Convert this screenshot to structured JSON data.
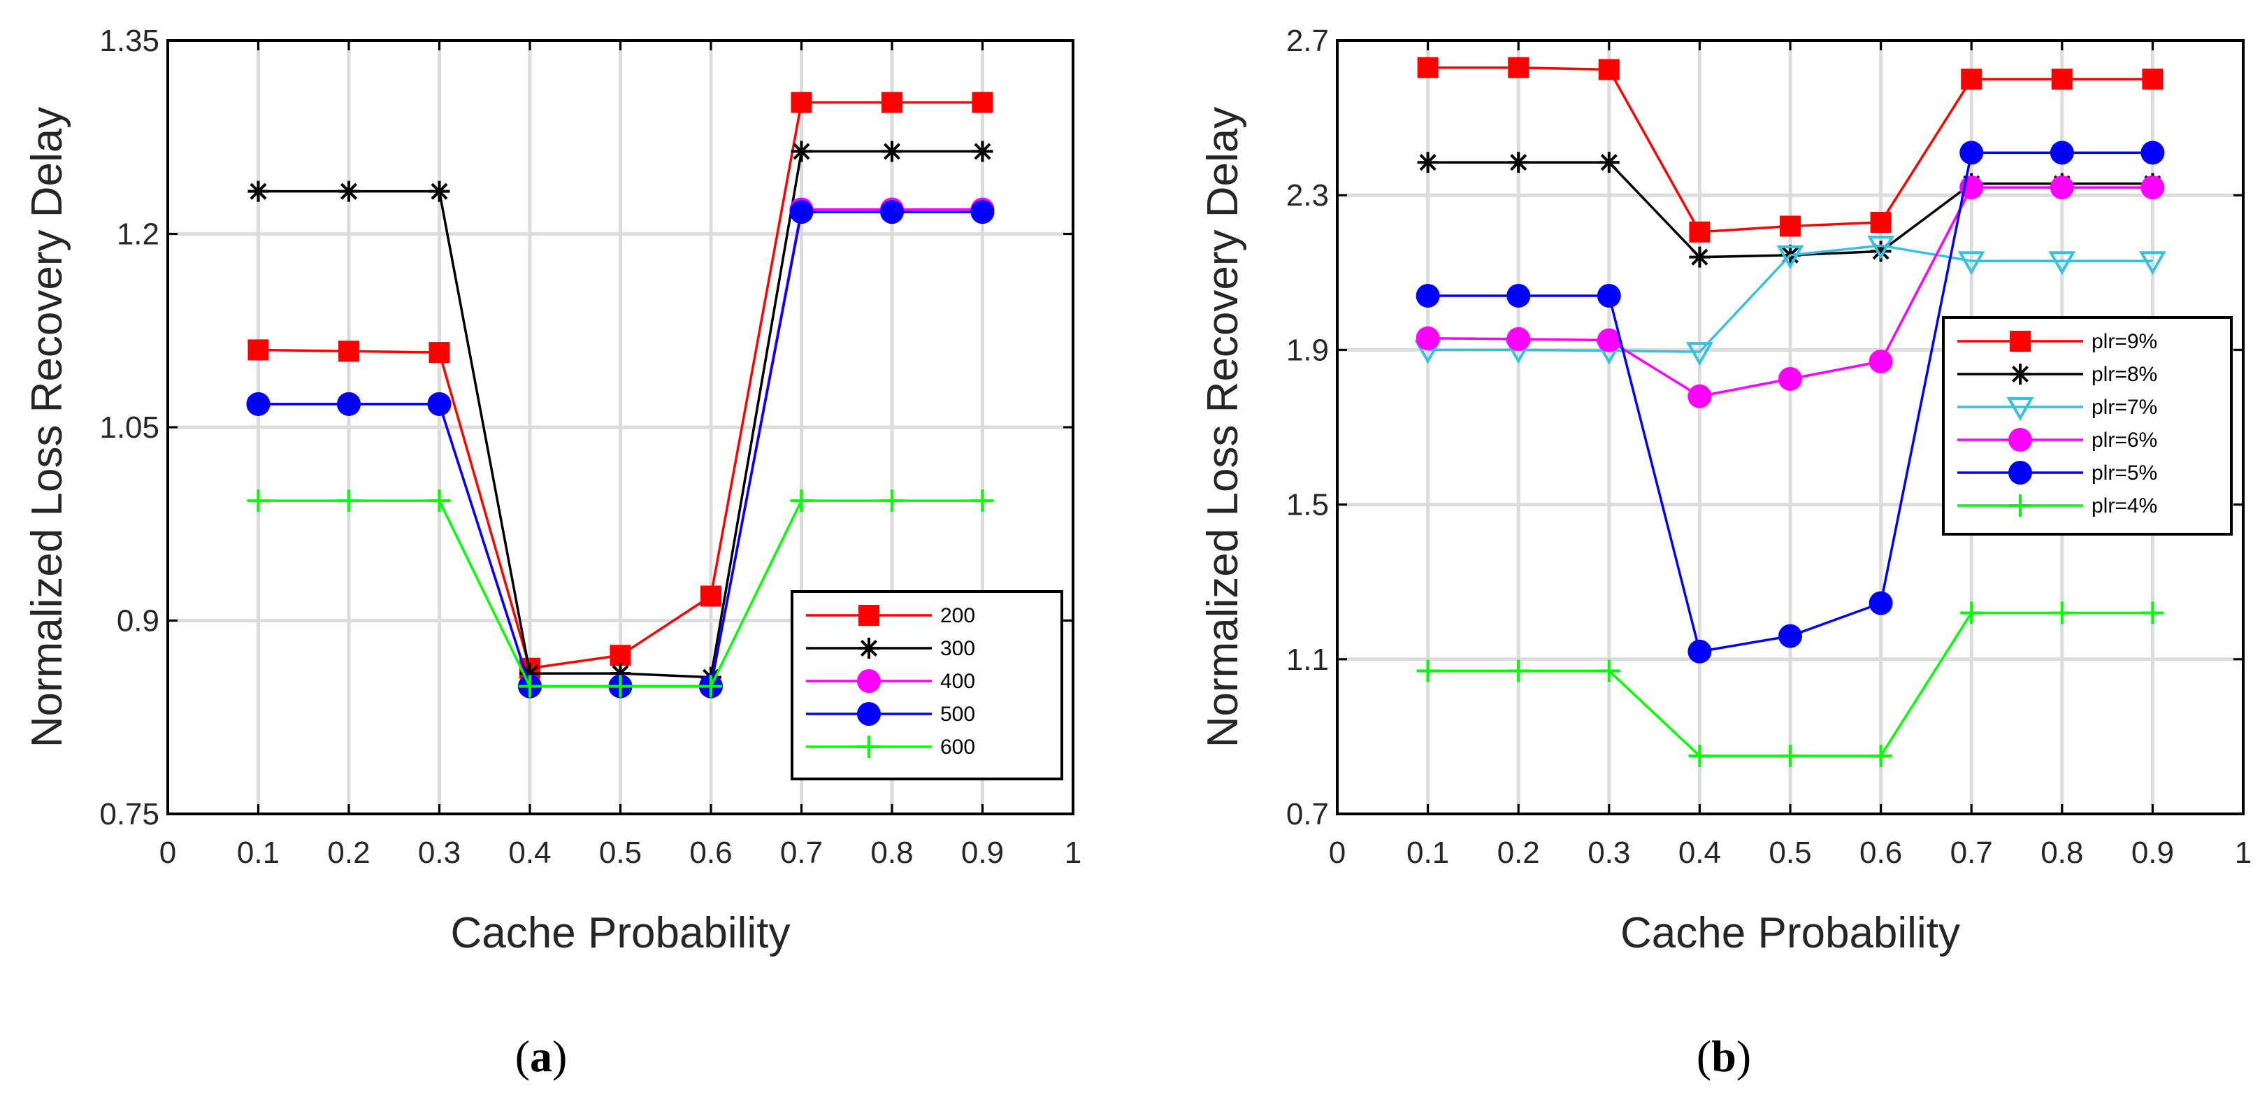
{
  "chart_data": [
    {
      "type": "line",
      "panel_label": "a",
      "xlabel": "Cache Probability",
      "ylabel": "Normalized Loss Recovery Delay",
      "xlim": [
        0,
        1
      ],
      "ylim": [
        0.75,
        1.35
      ],
      "xticks": [
        "0",
        "0.1",
        "0.2",
        "0.3",
        "0.4",
        "0.5",
        "0.6",
        "0.7",
        "0.8",
        "0.9",
        "1"
      ],
      "yticks": [
        "0.75",
        "0.9",
        "1.05",
        "1.2",
        "1.35"
      ],
      "grid": true,
      "legend_position": "lower-right",
      "x": [
        0.1,
        0.2,
        0.3,
        0.4,
        0.5,
        0.6,
        0.7,
        0.8,
        0.9
      ],
      "series": [
        {
          "name": "200",
          "color": "#ff0000",
          "marker": "square",
          "values": [
            1.11,
            1.109,
            1.108,
            0.863,
            0.873,
            0.919,
            1.302,
            1.302,
            1.302
          ]
        },
        {
          "name": "300",
          "color": "#000000",
          "marker": "asterisk",
          "values": [
            1.233,
            1.233,
            1.233,
            0.859,
            0.859,
            0.856,
            1.264,
            1.264,
            1.264
          ]
        },
        {
          "name": "400",
          "color": "#ff00ff",
          "marker": "circle",
          "values": [
            1.068,
            1.068,
            1.068,
            0.849,
            0.849,
            0.849,
            1.219,
            1.219,
            1.219
          ]
        },
        {
          "name": "500",
          "color": "#0000ff",
          "marker": "circle",
          "values": [
            1.068,
            1.068,
            1.068,
            0.849,
            0.849,
            0.849,
            1.217,
            1.217,
            1.217
          ]
        },
        {
          "name": "600",
          "color": "#00ff00",
          "marker": "plus",
          "values": [
            0.993,
            0.993,
            0.993,
            0.849,
            0.849,
            0.849,
            0.993,
            0.993,
            0.993
          ]
        }
      ]
    },
    {
      "type": "line",
      "panel_label": "b",
      "xlabel": "Cache Probability",
      "ylabel": "Normalized Loss Recovery Delay",
      "xlim": [
        0,
        1
      ],
      "ylim": [
        0.7,
        2.7
      ],
      "xticks": [
        "0",
        "0.1",
        "0.2",
        "0.3",
        "0.4",
        "0.5",
        "0.6",
        "0.7",
        "0.8",
        "0.9",
        "1"
      ],
      "yticks": [
        "0.7",
        "1.1",
        "1.5",
        "1.9",
        "2.3",
        "2.7"
      ],
      "grid": true,
      "legend_position": "right",
      "x": [
        0.1,
        0.2,
        0.3,
        0.4,
        0.5,
        0.6,
        0.7,
        0.8,
        0.9
      ],
      "series": [
        {
          "name": "plr=9%",
          "color": "#ff0000",
          "marker": "square",
          "values": [
            2.63,
            2.63,
            2.625,
            2.205,
            2.22,
            2.23,
            2.6,
            2.6,
            2.6
          ]
        },
        {
          "name": "plr=8%",
          "color": "#000000",
          "marker": "asterisk",
          "values": [
            2.385,
            2.385,
            2.385,
            2.14,
            2.145,
            2.155,
            2.33,
            2.33,
            2.33
          ]
        },
        {
          "name": "plr=7%",
          "color": "#37c0e0",
          "marker": "triangle-down",
          "values": [
            1.9,
            1.9,
            1.898,
            1.895,
            2.145,
            2.17,
            2.13,
            2.13,
            2.13
          ]
        },
        {
          "name": "plr=6%",
          "color": "#ff00ff",
          "marker": "circle",
          "values": [
            1.93,
            1.928,
            1.925,
            1.78,
            1.825,
            1.87,
            2.32,
            2.32,
            2.32
          ]
        },
        {
          "name": "plr=5%",
          "color": "#0000ff",
          "marker": "circle",
          "values": [
            2.04,
            2.04,
            2.04,
            1.12,
            1.16,
            1.245,
            2.41,
            2.41,
            2.41
          ]
        },
        {
          "name": "plr=4%",
          "color": "#00ff00",
          "marker": "plus",
          "values": [
            1.07,
            1.07,
            1.07,
            0.85,
            0.85,
            0.85,
            1.22,
            1.22,
            1.22
          ]
        }
      ]
    }
  ]
}
